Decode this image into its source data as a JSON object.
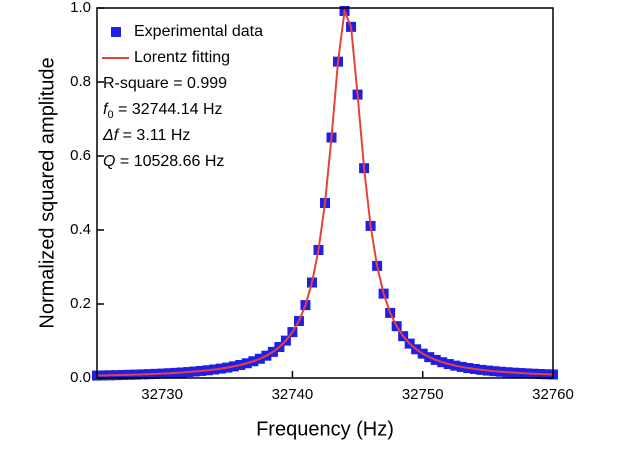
{
  "chart_data": {
    "type": "line",
    "xlabel": "Frequency (Hz)",
    "ylabel": "Normalized squared amplitude",
    "x": [
      32725,
      32725.5,
      32726,
      32726.5,
      32727,
      32727.5,
      32728,
      32728.5,
      32729,
      32729.5,
      32730,
      32730.5,
      32731,
      32731.5,
      32732,
      32732.5,
      32733,
      32733.5,
      32734,
      32734.5,
      32735,
      32735.5,
      32736,
      32736.5,
      32737,
      32737.5,
      32738,
      32738.5,
      32739,
      32739.5,
      32740,
      32740.5,
      32741,
      32741.5,
      32742,
      32742.5,
      32743,
      32743.5,
      32744,
      32744.5,
      32745,
      32745.5,
      32746,
      32746.5,
      32747,
      32747.5,
      32748,
      32748.5,
      32749,
      32749.5,
      32750,
      32750.5,
      32751,
      32751.5,
      32752,
      32752.5,
      32753,
      32753.5,
      32754,
      32754.5,
      32755,
      32755.5,
      32756,
      32756.5,
      32757,
      32757.5,
      32758,
      32758.5,
      32759,
      32759.5,
      32760
    ],
    "series": [
      {
        "name": "Experimental data",
        "color": "#1f1fe6",
        "marker": "square",
        "values": [
          0.0066,
          0.0069,
          0.0073,
          0.0077,
          0.0082,
          0.0087,
          0.0092,
          0.0098,
          0.0104,
          0.0112,
          0.0119,
          0.0128,
          0.0138,
          0.0149,
          0.0161,
          0.0175,
          0.0191,
          0.0209,
          0.023,
          0.0254,
          0.0281,
          0.0314,
          0.0352,
          0.0398,
          0.0453,
          0.052,
          0.0603,
          0.0706,
          0.0838,
          0.101,
          0.124,
          0.154,
          0.197,
          0.258,
          0.346,
          0.473,
          0.65,
          0.855,
          0.992,
          0.949,
          0.766,
          0.567,
          0.411,
          0.303,
          0.228,
          0.176,
          0.14,
          0.113,
          0.0929,
          0.0776,
          0.0658,
          0.0564,
          0.0489,
          0.0427,
          0.0377,
          0.0334,
          0.0299,
          0.0269,
          0.0243,
          0.022,
          0.0201,
          0.0184,
          0.0169,
          0.0156,
          0.0144,
          0.0134,
          0.0124,
          0.0116,
          0.0108,
          0.0101,
          0.0095
        ]
      },
      {
        "name": "Lorentz fitting",
        "color": "#e8413c",
        "marker": "line",
        "values": [
          0.0066,
          0.0069,
          0.0073,
          0.0077,
          0.0082,
          0.0087,
          0.0092,
          0.0098,
          0.0104,
          0.0112,
          0.0119,
          0.0128,
          0.0138,
          0.0149,
          0.0161,
          0.0175,
          0.0191,
          0.0209,
          0.023,
          0.0254,
          0.0281,
          0.0314,
          0.0352,
          0.0398,
          0.0453,
          0.052,
          0.0603,
          0.0706,
          0.0838,
          0.101,
          0.124,
          0.154,
          0.197,
          0.258,
          0.346,
          0.473,
          0.65,
          0.855,
          0.992,
          0.949,
          0.766,
          0.567,
          0.411,
          0.303,
          0.228,
          0.176,
          0.14,
          0.113,
          0.0929,
          0.0776,
          0.0658,
          0.0564,
          0.0489,
          0.0427,
          0.0377,
          0.0334,
          0.0299,
          0.0269,
          0.0243,
          0.022,
          0.0201,
          0.0184,
          0.0169,
          0.0156,
          0.0144,
          0.0134,
          0.0124,
          0.0116,
          0.0108,
          0.0101,
          0.0095
        ]
      }
    ],
    "xlim": [
      32725,
      32760
    ],
    "xticks": [
      32730,
      32740,
      32750,
      32760
    ],
    "ylim": [
      0,
      1
    ],
    "yticks": [
      {
        "value": 0,
        "label": "0.0"
      },
      0.2,
      0.4,
      0.6,
      0.8,
      {
        "value": 1,
        "label": "1.0"
      }
    ],
    "legend": "upper left",
    "annotations": [
      {
        "text": "R-square = 0.999"
      },
      {
        "italic": "f",
        "sub": "0",
        "text": " = 32744.14 Hz"
      },
      {
        "italic": "Δf",
        "text": " = 3.11 Hz"
      },
      {
        "italic": "Q",
        "text": " = 10528.66 Hz"
      }
    ]
  }
}
